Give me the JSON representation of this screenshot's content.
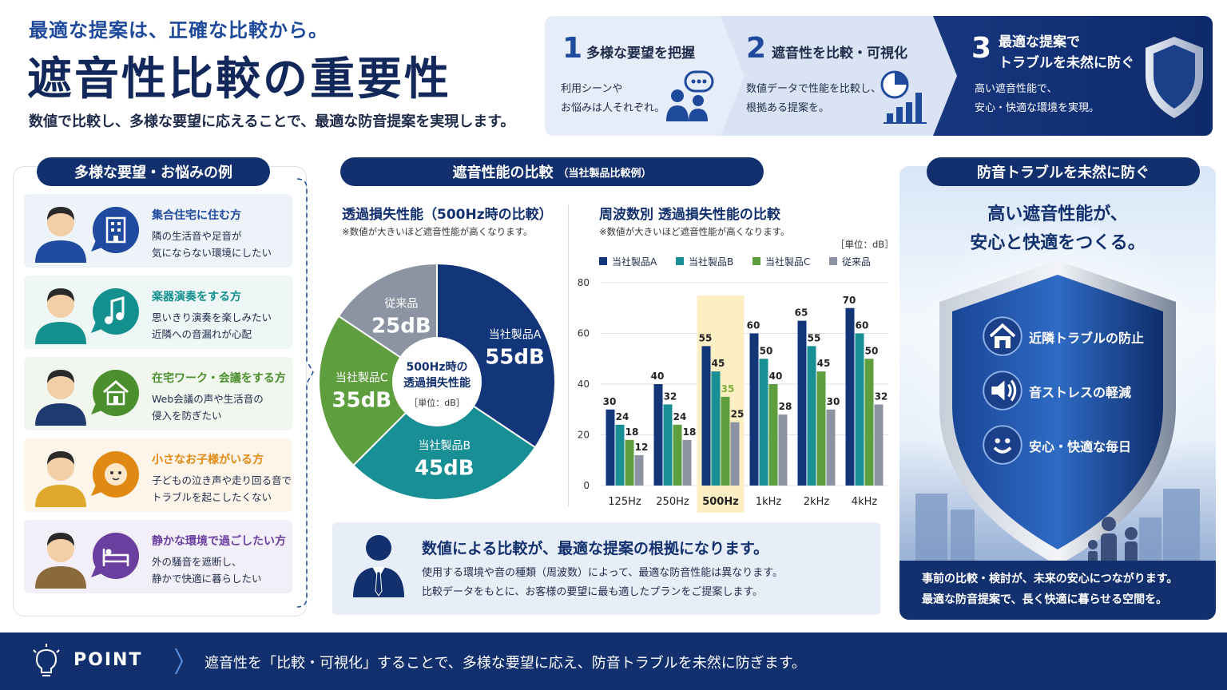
{
  "header": {
    "tagline": "最適な提案は、正確な比較から。",
    "title": "遮音性比較の重要性",
    "subtitle": "数値で比較し、多様な要望に応えることで、最適な防音提案を実現します。"
  },
  "steps": [
    {
      "num": "1",
      "title": "多様な要望を把握",
      "desc1": "利用シーンや",
      "desc2": "お悩みは人それぞれ。",
      "icon": "people-chat-icon"
    },
    {
      "num": "2",
      "title": "遮音性を比較・可視化",
      "desc1": "数値データで性能を比較し、",
      "desc2": "根拠ある提案を。",
      "icon": "chart-icon"
    },
    {
      "num": "3",
      "title1": "最適な提案で",
      "title2": "トラブルを未然に防ぐ",
      "desc1": "高い遮音性能で、",
      "desc2": "安心・快適な環境を実現。",
      "icon": "shield-icon"
    }
  ],
  "left": {
    "heading": "多様な要望・お悩みの例",
    "cards": [
      {
        "title": "集合住宅に住む方",
        "line1": "隣の生活音や足音が",
        "line2": "気にならない環境にしたい",
        "color": "#1f4aa0",
        "bg": "#eef3fa",
        "icon": "building-icon"
      },
      {
        "title": "楽器演奏をする方",
        "line1": "思いきり演奏を楽しみたい",
        "line2": "近隣への音漏れが心配",
        "color": "#14918f",
        "bg": "#eef6f6",
        "icon": "music-note-icon"
      },
      {
        "title": "在宅ワーク・会議をする方",
        "line1": "Web会議の声や生活音の",
        "line2": "侵入を防ぎたい",
        "color": "#4b8f2f",
        "bg": "#f1f6ee",
        "icon": "home-icon"
      },
      {
        "title": "小さなお子様がいる方",
        "line1": "子どもの泣き声や走り回る音で",
        "line2": "トラブルを起こしたくない",
        "color": "#e08a14",
        "bg": "#fdf5ea",
        "icon": "baby-icon"
      },
      {
        "title": "静かな環境で過ごしたい方",
        "line1": "外の騒音を遮断し、",
        "line2": "静かで快適に暮らしたい",
        "color": "#6b3fa0",
        "bg": "#f3eff8",
        "icon": "bed-icon"
      }
    ]
  },
  "middle": {
    "heading": "遮音性能の比較",
    "heading_small": "（当社製品比較例）",
    "pie": {
      "title": "透過損失性能（500Hz時の比較）",
      "note": "※数値が大きいほど遮音性能が高くなります。",
      "center1": "500Hz時の",
      "center2": "透過損失性能",
      "center_unit": "［単位：dB］"
    },
    "bars": {
      "title": "周波数別 透過損失性能の比較",
      "note": "※数値が大きいほど遮音性能が高くなります。",
      "unit": "［単位：dB］"
    },
    "message": {
      "title": "数値による比較が、最適な提案の根拠になります。",
      "line1": "使用する環境や音の種類（周波数）によって、最適な防音性能は異なります。",
      "line2": "比較データをもとに、お客様の要望に最も適したプランをご提案します。"
    }
  },
  "chart_data": [
    {
      "type": "pie",
      "title": "透過損失性能（500Hz時の比較）",
      "labels": [
        "当社製品A",
        "当社製品B",
        "当社製品C",
        "従来品"
      ],
      "values": [
        55,
        45,
        35,
        25
      ],
      "display": [
        "55dB",
        "45dB",
        "35dB",
        "25dB"
      ],
      "colors": [
        "#13357a",
        "#178f95",
        "#5f9e3f",
        "#8c94a3"
      ]
    },
    {
      "type": "bar",
      "title": "周波数別 透過損失性能の比較",
      "categories": [
        "125Hz",
        "250Hz",
        "500Hz",
        "1kHz",
        "2kHz",
        "4kHz"
      ],
      "series": [
        {
          "name": "当社製品A",
          "color": "#13357a",
          "values": [
            30,
            40,
            55,
            60,
            65,
            70
          ]
        },
        {
          "name": "当社製品B",
          "color": "#178f95",
          "values": [
            24,
            32,
            45,
            50,
            55,
            60
          ]
        },
        {
          "name": "当社製品C",
          "color": "#5f9e3f",
          "values": [
            18,
            24,
            35,
            40,
            45,
            50
          ]
        },
        {
          "name": "従来品",
          "color": "#8c94a3",
          "values": [
            12,
            18,
            25,
            28,
            30,
            32
          ]
        }
      ],
      "ylim": [
        0,
        80
      ],
      "yticks": [
        0,
        20,
        40,
        60,
        80
      ],
      "highlight_category": "500Hz",
      "grid": true,
      "legend": "top"
    }
  ],
  "right": {
    "heading": "防音トラブルを未然に防ぐ",
    "headline1": "高い遮音性能が、",
    "headline2": "安心と快適をつくる。",
    "items": [
      {
        "label": "近隣トラブルの防止",
        "icon": "house-icon"
      },
      {
        "label": "音ストレスの軽減",
        "icon": "speaker-icon"
      },
      {
        "label": "安心・快適な毎日",
        "icon": "smile-icon"
      }
    ],
    "footer1": "事前の比較・検討が、未来の安心につながります。",
    "footer2": "最適な防音提案で、長く快適に暮らせる空間を。"
  },
  "footer": {
    "label": "POINT",
    "text": "遮音性を「比較・可視化」することで、多様な要望に応え、防音トラブルを未然に防ぎます。"
  }
}
